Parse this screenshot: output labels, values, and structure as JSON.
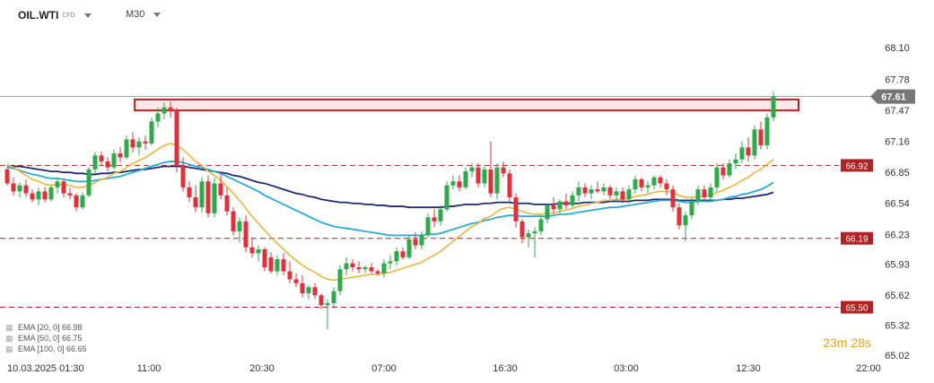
{
  "header": {
    "symbol": "OIL.WTI",
    "symbol_type": "CFD",
    "timeframe": "M30"
  },
  "legend": [
    {
      "label": "EMA [20, 0] 66.98",
      "icon": "settings-icon"
    },
    {
      "label": "EMA [50, 0] 66.75",
      "icon": "settings-icon"
    },
    {
      "label": "EMA [100, 0] 66.65",
      "icon": "settings-icon"
    }
  ],
  "timer": {
    "minutes": "23",
    "min_unit": "m",
    "seconds": "28",
    "sec_unit": "s"
  },
  "colors": {
    "bull": "#2eaa4a",
    "bear": "#e0303c",
    "ema20": "#f0b43c",
    "ema50": "#29a8e0",
    "ema100": "#1c2a78",
    "level": "#b22222",
    "zone_fill": "#fce8e8",
    "price_tag": "#777777"
  },
  "chart_data": {
    "type": "candlestick",
    "ylim": [
      65.02,
      68.1
    ],
    "y_ticks": [
      "68.10",
      "67.78",
      "67.47",
      "67.16",
      "66.85",
      "66.54",
      "66.23",
      "65.93",
      "65.62",
      "65.32",
      "65.02"
    ],
    "x_ticks": [
      "10.03.2025  01:30",
      "11:00",
      "20:30",
      "07:00",
      "16:30",
      "03:00",
      "12:30",
      "22:00"
    ],
    "current_price": {
      "value": 67.61,
      "label": "67.61"
    },
    "levels": [
      {
        "value": 66.92,
        "label": "66.92"
      },
      {
        "value": 66.19,
        "label": "66.19"
      },
      {
        "value": 65.5,
        "label": "65.50"
      }
    ],
    "resistance_zone": [
      67.47,
      67.58
    ],
    "candles": [
      [
        66.88,
        66.9,
        66.72,
        66.74
      ],
      [
        66.74,
        66.8,
        66.62,
        66.66
      ],
      [
        66.66,
        66.75,
        66.6,
        66.72
      ],
      [
        66.72,
        66.78,
        66.6,
        66.64
      ],
      [
        66.64,
        66.68,
        66.55,
        66.58
      ],
      [
        66.58,
        66.7,
        66.52,
        66.66
      ],
      [
        66.66,
        66.7,
        66.55,
        66.58
      ],
      [
        66.58,
        66.72,
        66.56,
        66.7
      ],
      [
        66.7,
        66.8,
        66.64,
        66.76
      ],
      [
        66.76,
        66.78,
        66.6,
        66.64
      ],
      [
        66.64,
        66.7,
        66.58,
        66.62
      ],
      [
        66.62,
        66.64,
        66.46,
        66.5
      ],
      [
        66.5,
        66.65,
        66.48,
        66.62
      ],
      [
        66.62,
        66.9,
        66.6,
        66.88
      ],
      [
        66.88,
        67.05,
        66.84,
        67.02
      ],
      [
        67.02,
        67.06,
        66.92,
        66.96
      ],
      [
        66.96,
        67.0,
        66.86,
        66.9
      ],
      [
        66.9,
        67.08,
        66.88,
        67.04
      ],
      [
        67.04,
        67.1,
        66.95,
        67.0
      ],
      [
        67.0,
        67.22,
        66.98,
        67.18
      ],
      [
        67.18,
        67.25,
        67.05,
        67.1
      ],
      [
        67.1,
        67.2,
        67.02,
        67.16
      ],
      [
        67.16,
        67.22,
        67.08,
        67.14
      ],
      [
        67.14,
        67.4,
        67.12,
        67.36
      ],
      [
        67.36,
        67.5,
        67.3,
        67.44
      ],
      [
        67.44,
        67.55,
        67.38,
        67.5
      ],
      [
        67.5,
        67.56,
        67.4,
        67.46
      ],
      [
        67.46,
        67.5,
        66.85,
        66.92
      ],
      [
        66.92,
        67.0,
        66.66,
        66.7
      ],
      [
        66.7,
        66.76,
        66.55,
        66.6
      ],
      [
        66.6,
        66.72,
        66.45,
        66.5
      ],
      [
        66.5,
        66.8,
        66.45,
        66.76
      ],
      [
        66.76,
        66.82,
        66.4,
        66.44
      ],
      [
        66.44,
        66.8,
        66.4,
        66.74
      ],
      [
        66.74,
        66.86,
        66.58,
        66.62
      ],
      [
        66.62,
        66.7,
        66.42,
        66.46
      ],
      [
        66.46,
        66.5,
        66.22,
        66.26
      ],
      [
        66.26,
        66.4,
        66.15,
        66.36
      ],
      [
        66.36,
        66.42,
        66.05,
        66.1
      ],
      [
        66.1,
        66.2,
        66.0,
        66.04
      ],
      [
        66.04,
        66.12,
        65.96,
        66.08
      ],
      [
        66.08,
        66.1,
        65.86,
        65.9
      ],
      [
        66.0,
        66.05,
        65.84,
        65.86
      ],
      [
        65.86,
        66.02,
        65.82,
        65.98
      ],
      [
        65.98,
        66.04,
        65.82,
        65.86
      ],
      [
        65.86,
        65.96,
        65.74,
        65.78
      ],
      [
        65.78,
        65.84,
        65.7,
        65.74
      ],
      [
        65.74,
        65.82,
        65.6,
        65.64
      ],
      [
        65.64,
        65.72,
        65.58,
        65.7
      ],
      [
        65.7,
        65.74,
        65.58,
        65.62
      ],
      [
        65.62,
        65.64,
        65.48,
        65.52
      ],
      [
        65.52,
        65.58,
        65.28,
        65.54
      ],
      [
        65.54,
        65.7,
        65.5,
        65.66
      ],
      [
        65.66,
        65.92,
        65.62,
        65.88
      ],
      [
        65.88,
        66.0,
        65.82,
        65.94
      ],
      [
        65.94,
        65.98,
        65.86,
        65.9
      ],
      [
        65.9,
        65.96,
        65.84,
        65.88
      ],
      [
        65.88,
        65.92,
        65.84,
        65.9
      ],
      [
        65.9,
        65.94,
        65.84,
        65.86
      ],
      [
        65.86,
        65.88,
        65.82,
        65.84
      ],
      [
        65.84,
        65.98,
        65.8,
        65.94
      ],
      [
        65.94,
        66.02,
        65.88,
        65.96
      ],
      [
        65.96,
        66.1,
        65.92,
        66.06
      ],
      [
        66.06,
        66.1,
        65.98,
        66.0
      ],
      [
        66.0,
        66.22,
        65.98,
        66.18
      ],
      [
        66.18,
        66.25,
        66.08,
        66.12
      ],
      [
        66.12,
        66.26,
        66.08,
        66.22
      ],
      [
        66.22,
        66.44,
        66.2,
        66.4
      ],
      [
        66.4,
        66.48,
        66.3,
        66.36
      ],
      [
        66.36,
        66.52,
        66.32,
        66.48
      ],
      [
        66.48,
        66.76,
        66.46,
        66.72
      ],
      [
        66.72,
        66.82,
        66.68,
        66.76
      ],
      [
        66.76,
        66.82,
        66.66,
        66.7
      ],
      [
        66.7,
        66.9,
        66.68,
        66.86
      ],
      [
        66.86,
        66.94,
        66.8,
        66.9
      ],
      [
        66.9,
        66.94,
        66.7,
        66.74
      ],
      [
        66.74,
        66.92,
        66.7,
        66.88
      ],
      [
        66.88,
        67.16,
        66.6,
        66.64
      ],
      [
        66.64,
        66.94,
        66.58,
        66.9
      ],
      [
        66.9,
        66.96,
        66.8,
        66.84
      ],
      [
        66.84,
        66.88,
        66.56,
        66.6
      ],
      [
        66.6,
        66.64,
        66.3,
        66.36
      ],
      [
        66.36,
        66.38,
        66.14,
        66.2
      ],
      [
        66.2,
        66.28,
        66.1,
        66.24
      ],
      [
        66.24,
        66.3,
        66.0,
        66.26
      ],
      [
        66.26,
        66.42,
        66.22,
        66.38
      ],
      [
        66.38,
        66.54,
        66.34,
        66.52
      ],
      [
        66.52,
        66.6,
        66.44,
        66.48
      ],
      [
        66.48,
        66.58,
        66.44,
        66.56
      ],
      [
        66.56,
        66.64,
        66.48,
        66.52
      ],
      [
        66.52,
        66.66,
        66.5,
        66.62
      ],
      [
        66.62,
        66.76,
        66.56,
        66.7
      ],
      [
        66.7,
        66.74,
        66.6,
        66.64
      ],
      [
        66.64,
        66.72,
        66.58,
        66.68
      ],
      [
        66.68,
        66.76,
        66.64,
        66.66
      ],
      [
        66.66,
        66.74,
        66.62,
        66.7
      ],
      [
        66.7,
        66.72,
        66.58,
        66.62
      ],
      [
        66.62,
        66.7,
        66.56,
        66.66
      ],
      [
        66.66,
        66.7,
        66.54,
        66.58
      ],
      [
        66.58,
        66.72,
        66.54,
        66.68
      ],
      [
        66.68,
        66.82,
        66.64,
        66.78
      ],
      [
        66.78,
        66.8,
        66.66,
        66.7
      ],
      [
        66.7,
        66.76,
        66.64,
        66.72
      ],
      [
        66.72,
        66.82,
        66.68,
        66.8
      ],
      [
        66.8,
        66.82,
        66.7,
        66.74
      ],
      [
        66.74,
        66.78,
        66.62,
        66.68
      ],
      [
        66.68,
        66.72,
        66.46,
        66.5
      ],
      [
        66.5,
        66.54,
        66.28,
        66.32
      ],
      [
        66.32,
        66.46,
        66.16,
        66.42
      ],
      [
        66.42,
        66.6,
        66.38,
        66.56
      ],
      [
        66.56,
        66.72,
        66.52,
        66.68
      ],
      [
        66.68,
        66.72,
        66.56,
        66.6
      ],
      [
        66.6,
        66.74,
        66.56,
        66.7
      ],
      [
        66.7,
        66.94,
        66.66,
        66.9
      ],
      [
        66.9,
        66.94,
        66.78,
        66.82
      ],
      [
        66.82,
        66.98,
        66.8,
        66.94
      ],
      [
        66.94,
        67.04,
        66.88,
        66.98
      ],
      [
        66.98,
        67.16,
        66.94,
        67.1
      ],
      [
        67.1,
        67.2,
        66.96,
        67.02
      ],
      [
        67.02,
        67.32,
        66.98,
        67.28
      ],
      [
        67.28,
        67.36,
        67.08,
        67.12
      ],
      [
        67.12,
        67.44,
        67.08,
        67.4
      ],
      [
        67.4,
        67.66,
        67.36,
        67.61
      ]
    ],
    "ema20": [
      66.93,
      66.9,
      66.86,
      66.82,
      66.78,
      66.76,
      66.73,
      66.72,
      66.73,
      66.73,
      66.72,
      66.7,
      66.7,
      66.72,
      66.75,
      66.78,
      66.8,
      66.84,
      66.86,
      66.9,
      66.94,
      66.97,
      67.0,
      67.04,
      67.08,
      67.12,
      67.14,
      67.12,
      67.08,
      67.02,
      66.96,
      66.92,
      66.86,
      66.82,
      66.77,
      66.71,
      66.64,
      66.57,
      66.49,
      66.41,
      66.34,
      66.27,
      66.2,
      66.14,
      66.08,
      66.02,
      65.97,
      65.92,
      65.88,
      65.85,
      65.81,
      65.78,
      65.77,
      65.78,
      65.79,
      65.8,
      65.81,
      65.82,
      65.83,
      65.83,
      65.84,
      65.85,
      65.87,
      65.89,
      65.91,
      65.93,
      65.95,
      65.99,
      66.02,
      66.06,
      66.11,
      66.16,
      66.21,
      66.26,
      66.31,
      66.34,
      66.39,
      66.41,
      66.46,
      66.49,
      66.5,
      66.48,
      66.46,
      66.44,
      66.43,
      66.43,
      66.44,
      66.44,
      66.46,
      66.47,
      66.49,
      66.51,
      66.52,
      66.54,
      66.55,
      66.57,
      66.57,
      66.58,
      66.58,
      66.59,
      66.61,
      66.62,
      66.63,
      66.65,
      66.66,
      66.66,
      66.65,
      66.62,
      66.6,
      66.6,
      66.61,
      66.61,
      66.62,
      66.65,
      66.67,
      66.7,
      66.73,
      66.77,
      66.8,
      66.85,
      66.88,
      66.93,
      66.98
    ],
    "ema50": [
      66.9,
      66.89,
      66.87,
      66.85,
      66.83,
      66.82,
      66.8,
      66.79,
      66.79,
      66.78,
      66.77,
      66.76,
      66.76,
      66.76,
      66.77,
      66.78,
      66.79,
      66.8,
      66.81,
      66.83,
      66.85,
      66.87,
      66.89,
      66.91,
      66.93,
      66.95,
      66.96,
      66.96,
      66.95,
      66.93,
      66.91,
      66.9,
      66.88,
      66.86,
      66.84,
      66.81,
      66.78,
      66.75,
      66.72,
      66.69,
      66.66,
      66.62,
      66.59,
      66.56,
      66.53,
      66.5,
      66.47,
      66.44,
      66.41,
      66.38,
      66.35,
      66.33,
      66.31,
      66.3,
      66.29,
      66.28,
      66.27,
      66.26,
      66.25,
      66.24,
      66.23,
      66.22,
      66.22,
      66.22,
      66.22,
      66.22,
      66.22,
      66.23,
      66.23,
      66.24,
      66.26,
      66.28,
      66.3,
      66.32,
      66.34,
      66.35,
      66.37,
      66.38,
      66.4,
      66.41,
      66.42,
      66.42,
      66.41,
      66.41,
      66.41,
      66.41,
      66.41,
      66.42,
      66.43,
      66.43,
      66.44,
      66.45,
      66.46,
      66.47,
      66.48,
      66.49,
      66.5,
      66.5,
      66.51,
      66.52,
      66.53,
      66.54,
      66.55,
      66.56,
      66.57,
      66.57,
      66.57,
      66.56,
      66.55,
      66.55,
      66.56,
      66.56,
      66.56,
      66.57,
      66.58,
      66.6,
      66.61,
      66.63,
      66.64,
      66.66,
      66.68,
      66.71,
      66.75
    ],
    "ema100": [
      66.92,
      66.91,
      66.91,
      66.9,
      66.89,
      66.88,
      66.87,
      66.86,
      66.86,
      66.85,
      66.85,
      66.84,
      66.84,
      66.83,
      66.83,
      66.84,
      66.84,
      66.85,
      66.85,
      66.86,
      66.87,
      66.88,
      66.88,
      66.89,
      66.9,
      66.91,
      66.91,
      66.91,
      66.91,
      66.9,
      66.89,
      66.88,
      66.87,
      66.86,
      66.85,
      66.84,
      66.82,
      66.81,
      66.79,
      66.77,
      66.75,
      66.74,
      66.72,
      66.7,
      66.68,
      66.66,
      66.64,
      66.63,
      66.61,
      66.6,
      66.58,
      66.57,
      66.56,
      66.55,
      66.55,
      66.54,
      66.54,
      66.53,
      66.53,
      66.52,
      66.52,
      66.51,
      66.51,
      66.51,
      66.5,
      66.5,
      66.5,
      66.5,
      66.5,
      66.5,
      66.51,
      66.51,
      66.52,
      66.53,
      66.53,
      66.53,
      66.54,
      66.54,
      66.55,
      66.55,
      66.55,
      66.54,
      66.54,
      66.54,
      66.53,
      66.53,
      66.53,
      66.53,
      66.54,
      66.54,
      66.54,
      66.54,
      66.55,
      66.55,
      66.55,
      66.55,
      66.56,
      66.56,
      66.56,
      66.56,
      66.57,
      66.57,
      66.57,
      66.58,
      66.58,
      66.58,
      66.58,
      66.57,
      66.57,
      66.57,
      66.57,
      66.57,
      66.57,
      66.57,
      66.58,
      66.58,
      66.59,
      66.59,
      66.6,
      66.61,
      66.62,
      66.63,
      66.65
    ]
  }
}
